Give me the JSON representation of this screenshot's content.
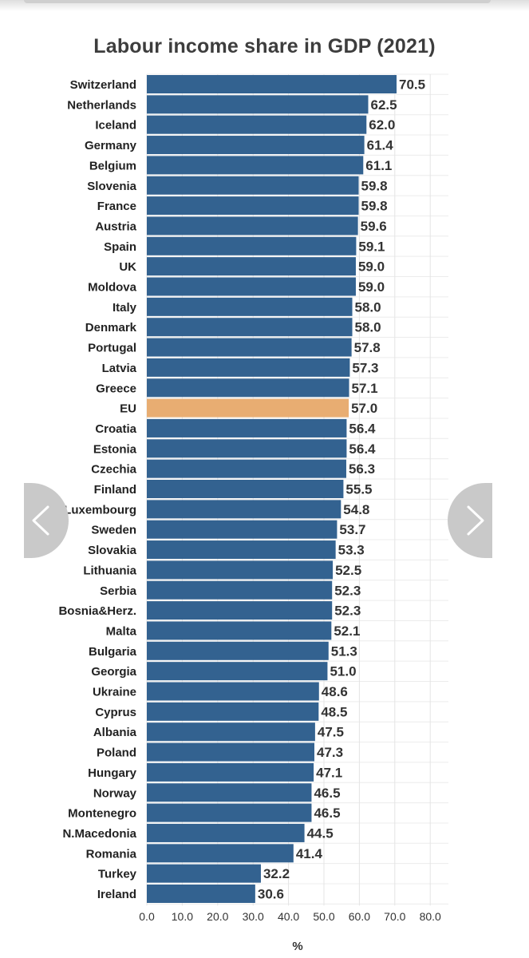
{
  "chart_data": {
    "type": "bar",
    "orientation": "horizontal",
    "title": "Labour income share in GDP (2021)",
    "xlabel": "%",
    "ylabel": "",
    "xlim": [
      0,
      80
    ],
    "x_ticks": [
      "0.0",
      "10.0",
      "20.0",
      "30.0",
      "40.0",
      "50.0",
      "60.0",
      "70.0",
      "80.0"
    ],
    "grid": "vertical",
    "bar_color": "#336290",
    "highlight_color": "#e8ad72",
    "highlight_category": "EU",
    "categories": [
      "Switzerland",
      "Netherlands",
      "Iceland",
      "Germany",
      "Belgium",
      "Slovenia",
      "France",
      "Austria",
      "Spain",
      "UK",
      "Moldova",
      "Italy",
      "Denmark",
      "Portugal",
      "Latvia",
      "Greece",
      "EU",
      "Croatia",
      "Estonia",
      "Czechia",
      "Finland",
      "Luxembourg",
      "Sweden",
      "Slovakia",
      "Lithuania",
      "Serbia",
      "Bosnia&Herz.",
      "Malta",
      "Bulgaria",
      "Georgia",
      "Ukraine",
      "Cyprus",
      "Albania",
      "Poland",
      "Hungary",
      "Norway",
      "Montenegro",
      "N.Macedonia",
      "Romania",
      "Turkey",
      "Ireland"
    ],
    "values": [
      70.5,
      62.5,
      62.0,
      61.4,
      61.1,
      59.8,
      59.8,
      59.6,
      59.1,
      59.0,
      59.0,
      58.0,
      58.0,
      57.8,
      57.3,
      57.1,
      57.0,
      56.4,
      56.4,
      56.3,
      55.5,
      54.8,
      53.7,
      53.3,
      52.5,
      52.3,
      52.3,
      52.1,
      51.3,
      51.0,
      48.6,
      48.5,
      47.5,
      47.3,
      47.1,
      46.5,
      46.5,
      44.5,
      41.4,
      32.2,
      30.6
    ],
    "value_labels": [
      "70.5",
      "62.5",
      "62.0",
      "61.4",
      "61.1",
      "59.8",
      "59.8",
      "59.6",
      "59.1",
      "59.0",
      "59.0",
      "58.0",
      "58.0",
      "57.8",
      "57.3",
      "57.1",
      "57.0",
      "56.4",
      "56.4",
      "56.3",
      "55.5",
      "54.8",
      "53.7",
      "53.3",
      "52.5",
      "52.3",
      "52.3",
      "52.1",
      "51.3",
      "51.0",
      "48.6",
      "48.5",
      "47.5",
      "47.3",
      "47.1",
      "46.5",
      "46.5",
      "44.5",
      "41.4",
      "32.2",
      "30.6"
    ]
  },
  "nav": {
    "prev_icon": "chevron-left-icon",
    "next_icon": "chevron-right-icon"
  }
}
